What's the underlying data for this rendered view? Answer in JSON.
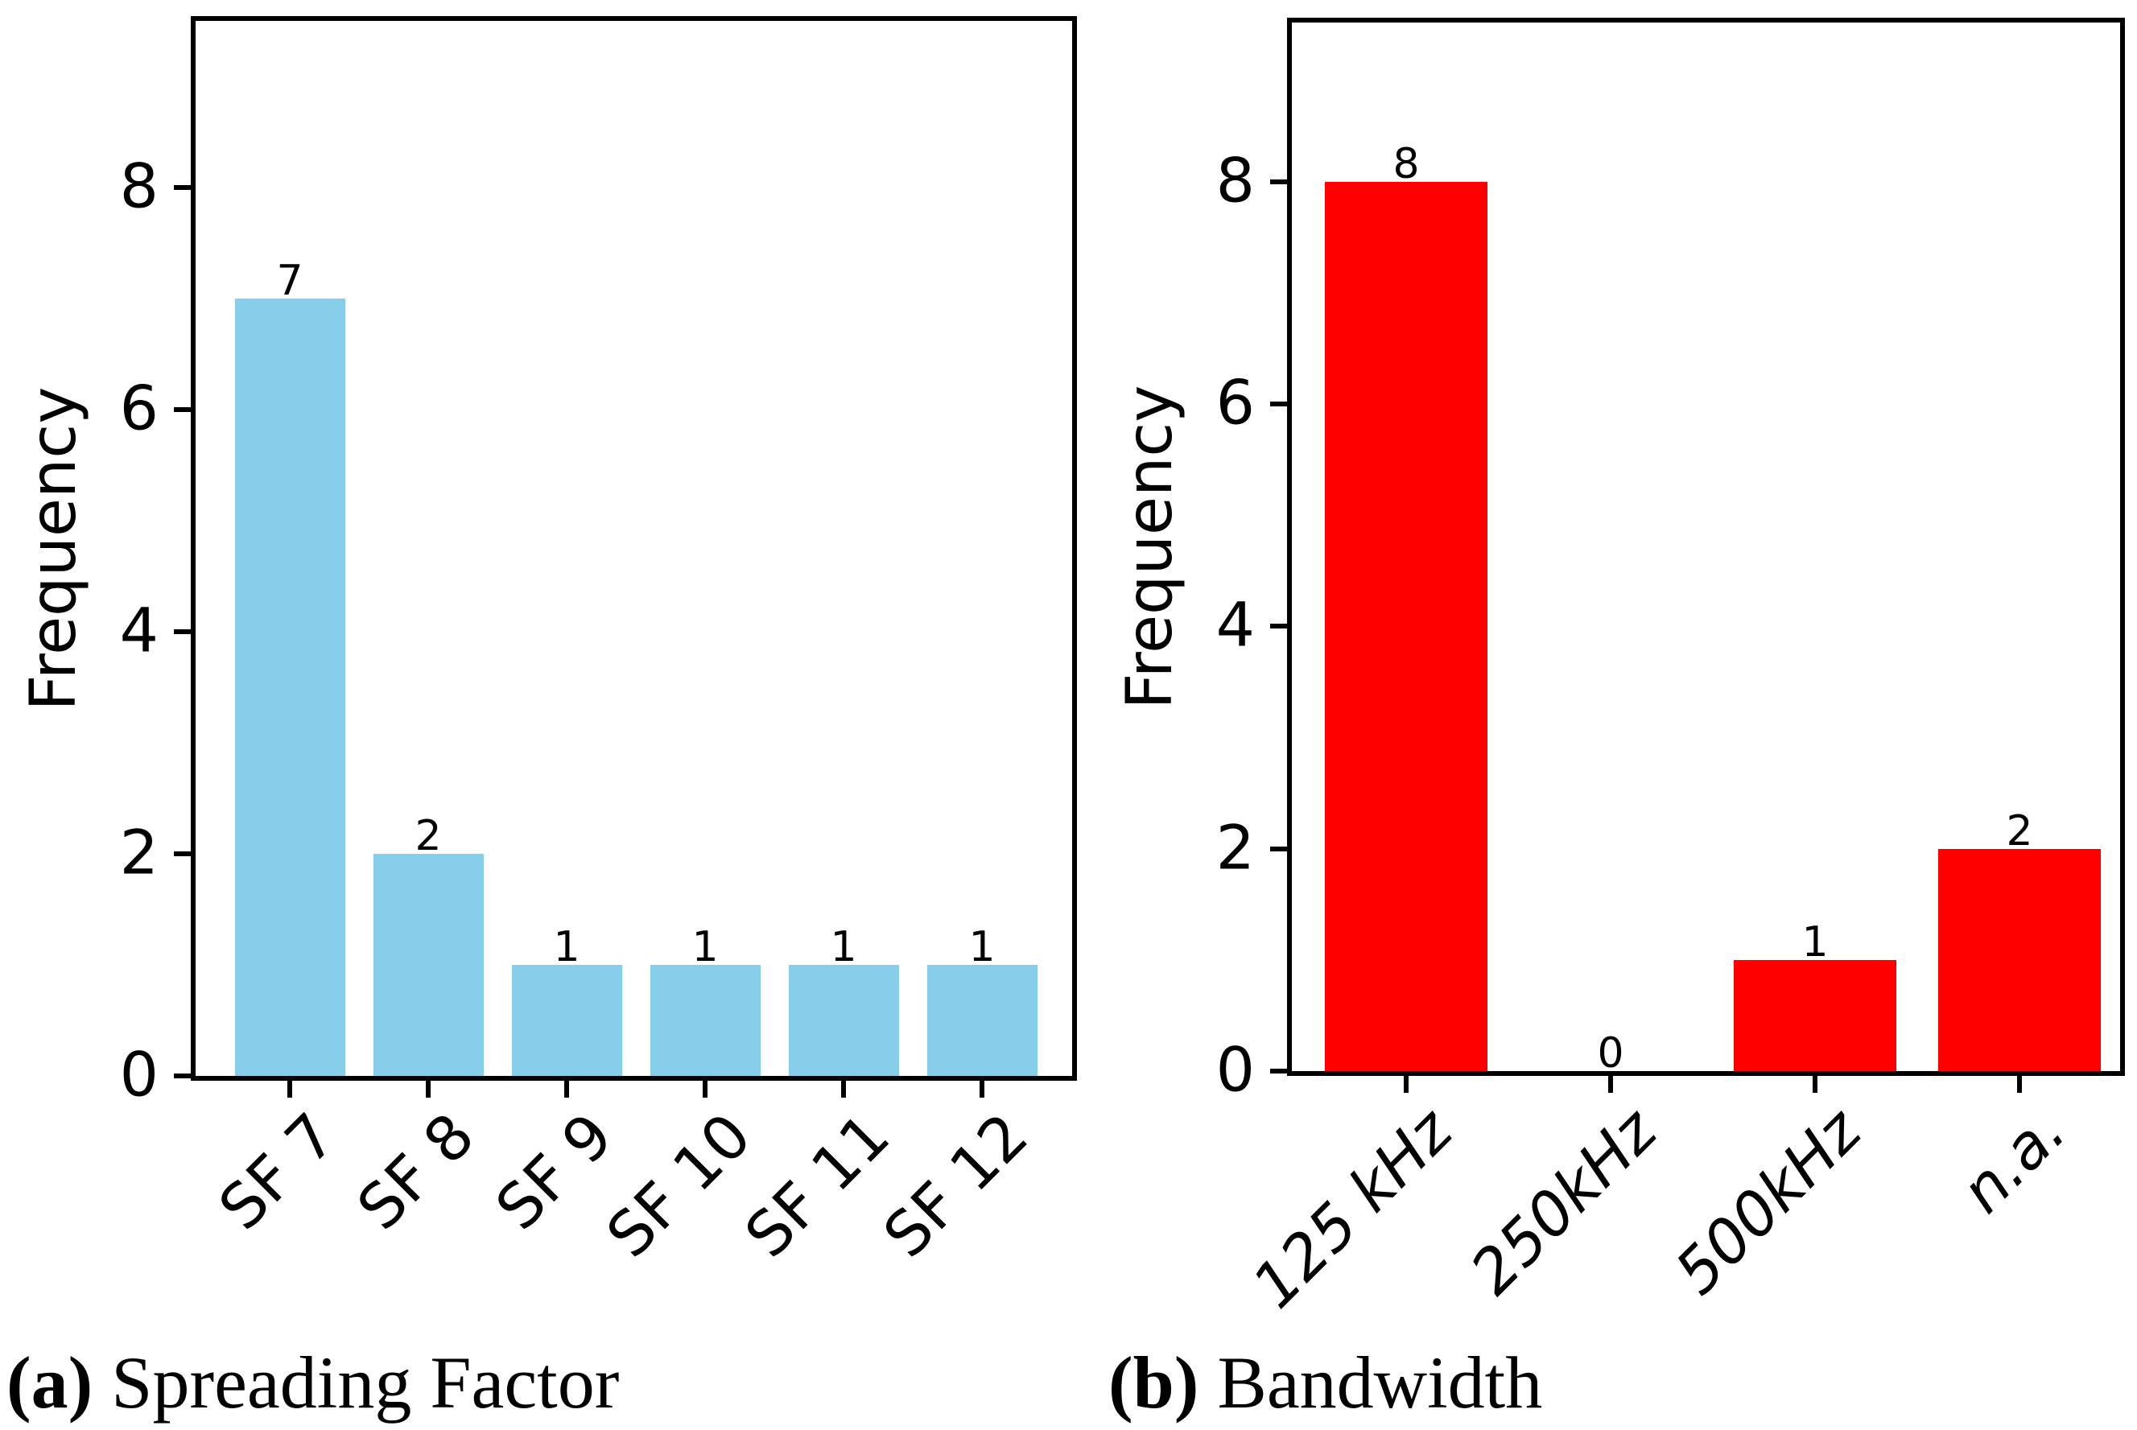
{
  "figure": {
    "background": "#ffffff",
    "captions": {
      "a_label": "(a)",
      "a_text": " Spreading Factor",
      "b_label": "(b)",
      "b_text": " Bandwidth"
    }
  },
  "chart_data": [
    {
      "id": "spreading-factor",
      "type": "bar",
      "panel": "a",
      "categories": [
        "SF 7",
        "SF 8",
        "SF 9",
        "SF 10",
        "SF 11",
        "SF 12"
      ],
      "values": [
        7,
        2,
        1,
        1,
        1,
        1
      ],
      "bar_labels": [
        "7",
        "2",
        "1",
        "1",
        "1",
        "1"
      ],
      "bar_color": "#87CEEB",
      "xlabel": "",
      "ylabel": "Frequency",
      "yticks": [
        0,
        2,
        4,
        6,
        8
      ],
      "ylim": [
        0,
        9.5
      ],
      "grid": false,
      "legend": "none",
      "xtick_style": "normal",
      "xtick_rotation_deg": 45,
      "spine_color": "#000000"
    },
    {
      "id": "bandwidth",
      "type": "bar",
      "panel": "b",
      "categories": [
        "125 kHz",
        "250kHz",
        "500kHz",
        "n.a."
      ],
      "values": [
        8,
        0,
        1,
        2
      ],
      "bar_labels": [
        "8",
        "0",
        "1",
        "2"
      ],
      "bar_color": "#FF0000",
      "xlabel": "",
      "ylabel": "Frequency",
      "yticks": [
        0,
        2,
        4,
        6,
        8
      ],
      "ylim": [
        0,
        9.43
      ],
      "grid": false,
      "legend": "none",
      "xtick_style": "italic",
      "xtick_rotation_deg": 45,
      "spine_color": "#000000"
    }
  ]
}
